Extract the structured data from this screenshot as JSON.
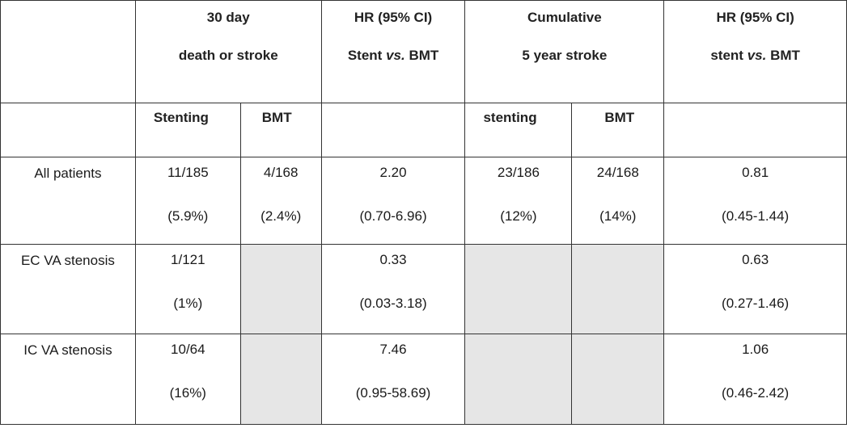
{
  "table": {
    "header_top": {
      "outcome_30day": [
        "30 day",
        "death or stroke"
      ],
      "hr_30day": [
        "HR (95% CI)",
        "Stent",
        "vs.",
        "BMT"
      ],
      "outcome_5year": [
        "Cumulative",
        "5 year stroke"
      ],
      "hr_5year": [
        "HR (95% CI)",
        "stent",
        "vs.",
        "BMT"
      ]
    },
    "header_sub": {
      "stenting_30day": "Stenting",
      "bmt_30day": "BMT",
      "stenting_5year": "stenting",
      "bmt_5year": "BMT"
    },
    "rows": [
      {
        "label": "All patients",
        "stent_30": [
          "11/185",
          "(5.9%)"
        ],
        "bmt_30": [
          "4/168",
          "(2.4%)"
        ],
        "hr_30": [
          "2.20",
          "(0.70-6.96)"
        ],
        "stent_5y": [
          "23/186",
          "(12%)"
        ],
        "bmt_5y": [
          "24/168",
          "(14%)"
        ],
        "hr_5y": [
          "0.81",
          "(0.45-1.44)"
        ]
      },
      {
        "label": "EC VA stenosis",
        "stent_30": [
          "1/121",
          "(1%)"
        ],
        "hr_30": [
          "0.33",
          "(0.03-3.18)"
        ],
        "hr_5y": [
          "0.63",
          "(0.27-1.46)"
        ]
      },
      {
        "label": "IC VA stenosis",
        "stent_30": [
          "10/64",
          "(16%)"
        ],
        "hr_30": [
          "7.46",
          "(0.95-58.69)"
        ],
        "hr_5y": [
          "1.06",
          "(0.46-2.42)"
        ]
      }
    ]
  }
}
